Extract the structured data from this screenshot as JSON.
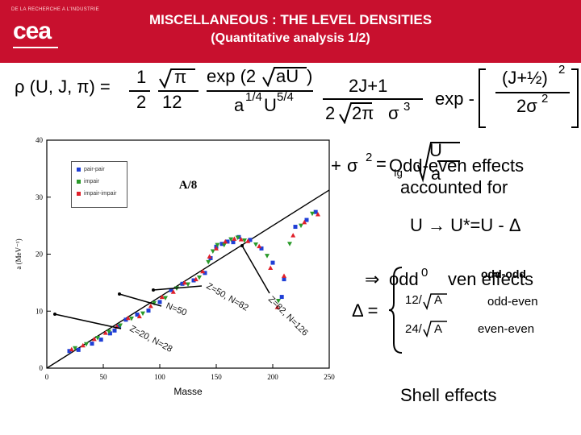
{
  "header": {
    "institution_small": "DE LA RECHERCHE A L'INDUSTRIE",
    "logo": "cea",
    "title_line1": "MISCELLANEOUS : THE LEVEL DENSITIES",
    "title_line2": "(Quantitative analysis 1/2)"
  },
  "formula": {
    "lhs": "ρ (U, J, π) =",
    "frac1_num": "1",
    "frac1_den": "2",
    "sqrt_pi": "π",
    "twelve": "12",
    "exp_num": "exp (2",
    "exp_sqrt": "aU",
    "exp_close": ")",
    "den_main": "a",
    "den_a_exp": "1/4",
    "den_u": "U",
    "den_u_exp": "5/4",
    "term2_num": "2J+1",
    "term2_den_2": "2",
    "term2_sqrt": "2π",
    "term2_sigma": "σ",
    "term2_sigma_exp": "3",
    "exp_label": "exp -",
    "exp_frac_num": "(J+½)",
    "exp_frac_num_exp": "2",
    "exp_frac_den": "2σ",
    "exp_frac_den_exp": "2"
  },
  "sigma_line": {
    "plus": "+",
    "sigma": "σ",
    "sigma_exp": "2",
    "eq": "=",
    "overlap_text": "Odd-even effects",
    "sub_text": "Ig",
    "sqrt_num": "U",
    "sqrt_den": "a",
    "line2": "accounted for"
  },
  "u_shift": "U → U*=U - Δ",
  "delta_block": {
    "implies": "⇒",
    "odd_word": "odd",
    "zero": "0",
    "odd_even_effects": "ven effects",
    "odd_odd": "odd-odd",
    "delta_eq": "Δ =",
    "row1_coef": "12/",
    "row1_sqrt": "A",
    "row1_label": "odd-even",
    "row2_coef": "24/",
    "row2_sqrt": "A",
    "row2_label": "even-even"
  },
  "shell_effects": "Shell effects",
  "chart_data": {
    "type": "scatter",
    "xlabel": "Masse",
    "ylabel": "a (MeV⁻¹)",
    "xlim": [
      0,
      250
    ],
    "ylim": [
      0,
      40
    ],
    "xticks": [
      "0",
      "50",
      "100",
      "150",
      "200",
      "250"
    ],
    "yticks": [
      "0",
      "10",
      "20",
      "30",
      "40"
    ],
    "legend": [
      "pair-pair",
      "impair",
      "impair-impair"
    ],
    "colors": {
      "pair-pair": "#1f3fd6",
      "impair": "#2a9a2a",
      "impair-impair": "#e0202a"
    },
    "reference_line": {
      "label": "A/8",
      "from": [
        0,
        0
      ],
      "to": [
        250,
        31.25
      ]
    },
    "annotations": [
      "Z=20, N=28",
      "N=50",
      "Z=50, N=82",
      "Z=82, N=126"
    ],
    "series": [
      {
        "name": "pair-pair",
        "x": [
          20,
          28,
          40,
          48,
          56,
          60,
          64,
          70,
          80,
          90,
          100,
          110,
          120,
          130,
          140,
          145,
          150,
          155,
          160,
          165,
          170,
          180,
          190,
          200,
          208,
          210,
          220,
          230,
          238
        ],
        "y": [
          3.0,
          3.2,
          4.3,
          5.0,
          6.1,
          6.6,
          7.3,
          8.5,
          9.4,
          10.1,
          11.6,
          13.7,
          14.8,
          15.4,
          16.7,
          19.3,
          21.3,
          21.8,
          22.2,
          22.1,
          23.0,
          22.5,
          21.0,
          18.5,
          12.5,
          15.6,
          24.8,
          26.0,
          27.4
        ]
      },
      {
        "name": "impair",
        "x": [
          25,
          35,
          45,
          55,
          65,
          75,
          85,
          95,
          105,
          115,
          125,
          135,
          143,
          147,
          151,
          157,
          163,
          169,
          175,
          185,
          195,
          205,
          215,
          225,
          235
        ],
        "y": [
          3.5,
          4.2,
          5.3,
          6.4,
          7.5,
          8.7,
          9.6,
          11.4,
          12.3,
          14.0,
          14.7,
          15.9,
          18.6,
          20.5,
          21.6,
          21.6,
          22.6,
          22.9,
          22.4,
          21.7,
          19.7,
          11.8,
          21.8,
          25.0,
          27.1
        ]
      },
      {
        "name": "impair-impair",
        "x": [
          22,
          32,
          42,
          52,
          62,
          72,
          82,
          92,
          102,
          112,
          122,
          132,
          138,
          144,
          150,
          158,
          166,
          172,
          178,
          188,
          198,
          204,
          210,
          218,
          228,
          240
        ],
        "y": [
          3.3,
          4.0,
          5.1,
          6.2,
          7.3,
          8.8,
          9.1,
          10.9,
          12.5,
          13.4,
          15.0,
          15.6,
          17.0,
          19.6,
          21.0,
          22.2,
          22.7,
          22.6,
          22.3,
          21.4,
          17.6,
          10.7,
          16.2,
          23.3,
          25.6,
          27.0
        ]
      }
    ]
  }
}
